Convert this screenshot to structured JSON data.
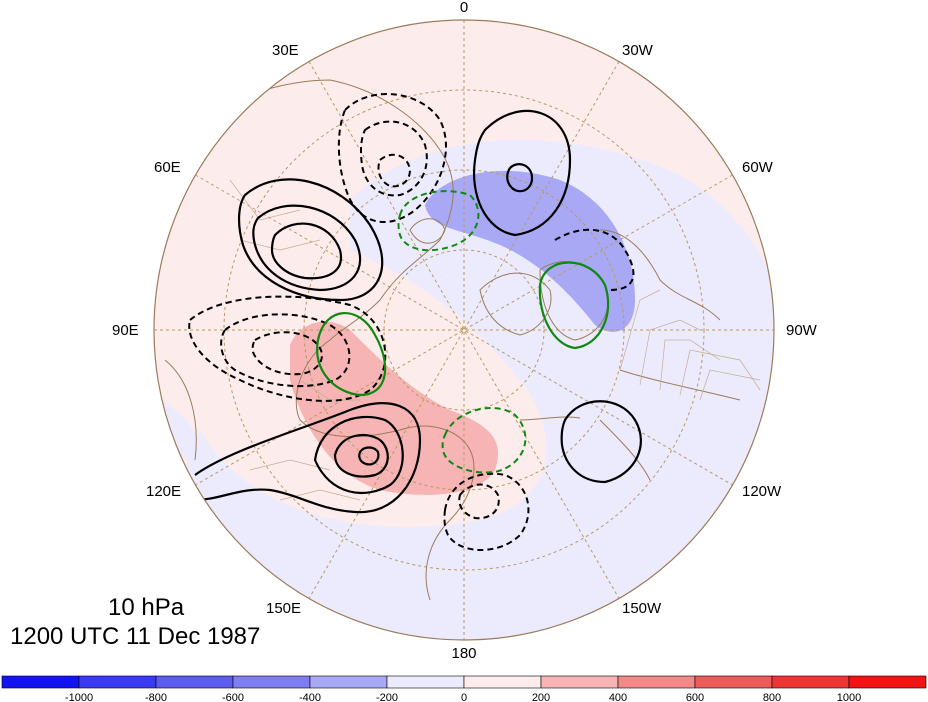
{
  "map": {
    "projection": "north polar stereographic",
    "longitude_labels": [
      "0",
      "30W",
      "60W",
      "90W",
      "120W",
      "150W",
      "180",
      "150E",
      "120E",
      "90E",
      "60E",
      "30E"
    ],
    "shading_field": "anomaly",
    "contour_styles": {
      "positive": "solid black",
      "negative": "dashed black",
      "secondary_positive": "solid green",
      "secondary_negative": "dashed green"
    }
  },
  "title": {
    "level": "10 hPa",
    "date": "1200 UTC 11 Dec 1987"
  },
  "colorbar": {
    "ticks": [
      "-1000",
      "-800",
      "-600",
      "-400",
      "-200",
      "0",
      "200",
      "400",
      "600",
      "800",
      "1000"
    ],
    "colors": [
      "#1414f0",
      "#3a3af0",
      "#5c5cf0",
      "#7e7ef2",
      "#a8a8f5",
      "#ecebfd",
      "#fdecec",
      "#f6b4b4",
      "#f28888",
      "#ee5b5b",
      "#ec3636",
      "#f01414"
    ]
  },
  "colors": {
    "coast": "#9c7b5a",
    "graticule": "#b79a62",
    "neg_shade": "#a8a8f5",
    "neg_light": "#ecebfd",
    "pos_shade": "#f6b4b4",
    "pos_light": "#fdecec",
    "contour_black": "#000000",
    "contour_green": "#118811"
  }
}
